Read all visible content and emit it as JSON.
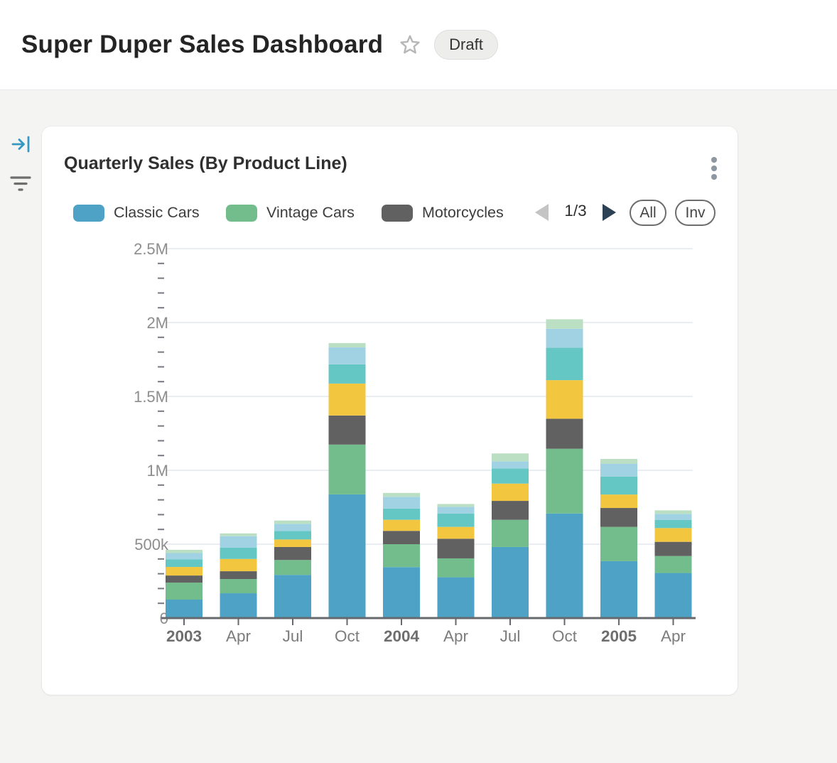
{
  "header": {
    "title": "Super Duper Sales Dashboard",
    "status_badge": "Draft"
  },
  "icons": {
    "favorite": "star-outline",
    "rail_top": "arrow-to-bar-collapse",
    "rail_bottom": "filter-lines",
    "card_menu": "kebab-vertical",
    "legend_prev": "triangle-left-disabled",
    "legend_next": "triangle-right"
  },
  "card": {
    "title": "Quarterly Sales (By Product Line)",
    "legend": {
      "items": [
        {
          "label": "Classic Cars",
          "color": "#4da2c5"
        },
        {
          "label": "Vintage Cars",
          "color": "#72bd8b"
        },
        {
          "label": "Motorcycles",
          "color": "#616161"
        }
      ],
      "pager": {
        "indicator": "1/3",
        "prev_enabled": false,
        "next_enabled": true
      },
      "select_all_label": "All",
      "invert_label": "Inv"
    }
  },
  "chart_data": {
    "type": "bar",
    "stacked": true,
    "title": "Quarterly Sales (By Product Line)",
    "values_unit": "USD thousands",
    "x": [
      {
        "label": "2003",
        "bold": true
      },
      {
        "label": "Apr",
        "bold": false
      },
      {
        "label": "Jul",
        "bold": false
      },
      {
        "label": "Oct",
        "bold": false
      },
      {
        "label": "2004",
        "bold": true
      },
      {
        "label": "Apr",
        "bold": false
      },
      {
        "label": "Jul",
        "bold": false
      },
      {
        "label": "Oct",
        "bold": false
      },
      {
        "label": "2005",
        "bold": true
      },
      {
        "label": "Apr",
        "bold": false
      }
    ],
    "series": [
      {
        "name": "Classic Cars",
        "color": "#4da2c5",
        "in_visible_legend": true,
        "values": [
          125,
          168,
          292,
          837,
          345,
          276,
          481,
          708,
          385,
          305
        ]
      },
      {
        "name": "Vintage Cars",
        "color": "#72bd8b",
        "in_visible_legend": true,
        "values": [
          115,
          96,
          101,
          337,
          155,
          128,
          184,
          438,
          232,
          115
        ]
      },
      {
        "name": "Motorcycles",
        "color": "#616161",
        "in_visible_legend": true,
        "values": [
          48,
          53,
          88,
          197,
          90,
          133,
          128,
          203,
          128,
          96
        ]
      },
      {
        "name": "unlabeled-series-4-yellow",
        "color": "#f3c63f",
        "in_visible_legend": false,
        "values": [
          58,
          83,
          51,
          216,
          75,
          80,
          117,
          261,
          91,
          93
        ]
      },
      {
        "name": "unlabeled-series-5-teal",
        "color": "#65c7c4",
        "in_visible_legend": false,
        "values": [
          52,
          77,
          58,
          130,
          76,
          91,
          103,
          220,
          122,
          56
        ]
      },
      {
        "name": "unlabeled-series-6-lightblue",
        "color": "#a1d2e3",
        "in_visible_legend": false,
        "values": [
          42,
          77,
          48,
          115,
          80,
          45,
          48,
          128,
          87,
          40
        ]
      },
      {
        "name": "unlabeled-series-7-palegreen",
        "color": "#bbdfc3",
        "in_visible_legend": false,
        "values": [
          22,
          19,
          22,
          29,
          26,
          19,
          53,
          64,
          32,
          24
        ]
      }
    ],
    "y_axis": {
      "ticks": [
        "0",
        "500k",
        "1M",
        "1.5M",
        "2M",
        "2.5M"
      ],
      "lim": [
        0,
        2500
      ],
      "minor_ticks_per_interval": 4
    },
    "legend_position": "top",
    "legend_pages": 3,
    "grid": true
  }
}
